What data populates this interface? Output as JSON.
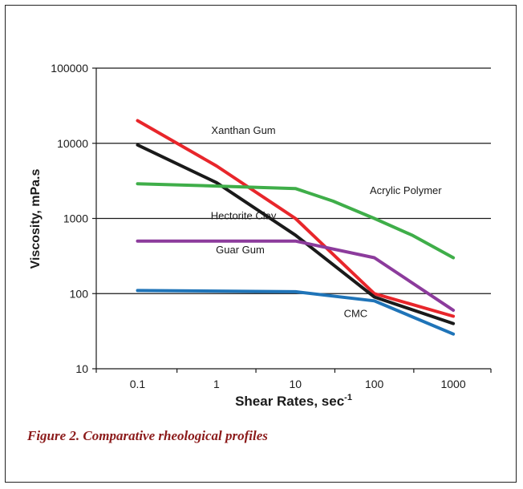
{
  "caption": "Figure 2. Comparative rheological profiles",
  "chart_data": {
    "type": "line",
    "title": "",
    "xlabel": "Shear Rates, sec",
    "xlabel_superscript": "-1",
    "ylabel": "Viscosity, mPa.s",
    "x_scale": "log",
    "y_scale": "log",
    "xlim": [
      0.03,
      3000
    ],
    "ylim": [
      10,
      100000
    ],
    "x_ticks": [
      0.1,
      1,
      10,
      100,
      1000
    ],
    "x_tick_labels": [
      "0.1",
      "1",
      "10",
      "100",
      "1000"
    ],
    "y_ticks": [
      10,
      100,
      1000,
      10000,
      100000
    ],
    "y_tick_labels": [
      "10",
      "100",
      "1000",
      "10000",
      "100000"
    ],
    "grid": "horizontal",
    "legend": "inline labels",
    "series": [
      {
        "name": "Xanthan Gum",
        "color": "#e8262b",
        "x": [
          0.1,
          1,
          10,
          100,
          1000
        ],
        "y": [
          20000,
          5000,
          1000,
          100,
          50
        ]
      },
      {
        "name": "Hectorite Clay",
        "color": "#1a1a1a",
        "x": [
          0.1,
          1,
          10,
          100,
          1000
        ],
        "y": [
          9500,
          3000,
          600,
          90,
          40
        ]
      },
      {
        "name": "Acrylic Polymer",
        "color": "#3fae49",
        "x": [
          0.1,
          1,
          10,
          30,
          100,
          300,
          1000
        ],
        "y": [
          2900,
          2700,
          2500,
          1700,
          1000,
          600,
          300
        ]
      },
      {
        "name": "Guar Gum",
        "color": "#8c3b9c",
        "x": [
          0.1,
          1,
          10,
          100,
          1000
        ],
        "y": [
          500,
          500,
          500,
          300,
          60
        ]
      },
      {
        "name": "CMC",
        "color": "#1f74b8",
        "x": [
          0.1,
          1,
          10,
          100,
          1000
        ],
        "y": [
          110,
          108,
          106,
          80,
          29
        ]
      }
    ],
    "annotations": [
      {
        "text": "Xanthan Gum",
        "x": 2.2,
        "y": 15000
      },
      {
        "text": "Acrylic Polymer",
        "x": 250,
        "y": 2400
      },
      {
        "text": "Hectorite Clay",
        "x": 2.2,
        "y": 1100
      },
      {
        "text": "Guar Gum",
        "x": 2.0,
        "y": 390
      },
      {
        "text": "CMC",
        "x": 58,
        "y": 55
      }
    ]
  }
}
